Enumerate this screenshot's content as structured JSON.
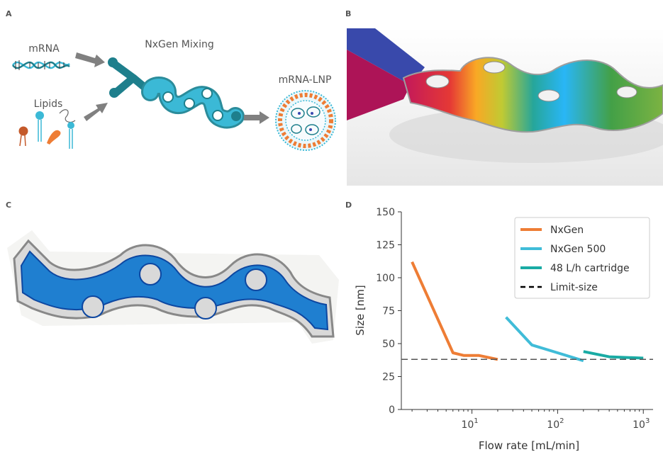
{
  "panels": {
    "a": {
      "letter": "A",
      "mrna_label": "mRNA",
      "lipids_label": "Lipids",
      "mixing_label": "NxGen Mixing",
      "lnp_label": "mRNA-LNP"
    },
    "b": {
      "letter": "B"
    },
    "c": {
      "letter": "C"
    },
    "d": {
      "letter": "D"
    }
  },
  "colors": {
    "teal_dark": "#1e7f8c",
    "teal": "#3bb9d6",
    "orange": "#ee7d35",
    "grey_arrow": "#808080",
    "chip_blue": "#1f7fd0"
  },
  "chart_data": {
    "type": "line",
    "xscale": "log",
    "xlabel": "Flow rate [mL/min]",
    "ylabel": "Size [nm]",
    "xlim": [
      1.5,
      1300
    ],
    "ylim": [
      0,
      150
    ],
    "x_ticks": [
      {
        "value": 10,
        "base": "10",
        "exp": "1"
      },
      {
        "value": 100,
        "base": "10",
        "exp": "2"
      },
      {
        "value": 1000,
        "base": "10",
        "exp": "3"
      }
    ],
    "y_ticks": [
      0,
      25,
      50,
      75,
      100,
      125,
      150
    ],
    "grid": false,
    "legend_position": "top-right",
    "series": [
      {
        "name": "NxGen",
        "color": "#ee7d35",
        "style": "solid",
        "x": [
          2,
          6,
          8,
          12,
          20
        ],
        "y": [
          112,
          43,
          41,
          41,
          38
        ]
      },
      {
        "name": "NxGen 500",
        "color": "#40bcd8",
        "style": "solid",
        "x": [
          25,
          50,
          100,
          200
        ],
        "y": [
          70,
          49,
          43,
          37
        ]
      },
      {
        "name": "48 L/h cartridge",
        "color": "#1aaba4",
        "style": "solid",
        "x": [
          200,
          400,
          1000
        ],
        "y": [
          44,
          40,
          39
        ]
      },
      {
        "name": "Limit-size",
        "color": "#555555",
        "style": "dashed",
        "x": [
          1.5,
          1300
        ],
        "y": [
          38,
          38
        ]
      }
    ]
  }
}
